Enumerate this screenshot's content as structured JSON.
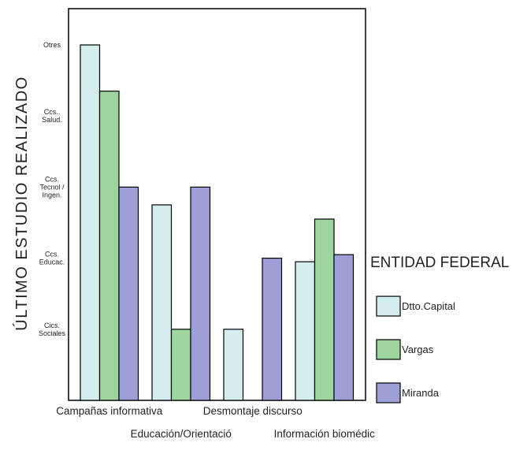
{
  "chart_data": {
    "type": "bar",
    "ylabel": "ÚLTIMO ESTUDIO REALIZADO",
    "xlabel": "",
    "categories": [
      "Campañas informativa",
      "Educación/Orientació",
      "Desmontaje discurso",
      "Información biomédic"
    ],
    "yticks": [
      {
        "value": 1,
        "lines": [
          "Cics.",
          "Sociales"
        ]
      },
      {
        "value": 2,
        "lines": [
          "Ccs.",
          "Educac."
        ]
      },
      {
        "value": 3,
        "lines": [
          "Ccs.",
          "Tecnol  /",
          "Ingen."
        ]
      },
      {
        "value": 4,
        "lines": [
          "Ccs..",
          "Salud."
        ]
      },
      {
        "value": 5,
        "lines": [
          "Otres"
        ]
      }
    ],
    "ylim": [
      0,
      5.4
    ],
    "series": [
      {
        "name": "Dtto.Capital",
        "color": "#d4eef0",
        "values": [
          5.0,
          2.75,
          1.0,
          1.95
        ]
      },
      {
        "name": "Vargas",
        "color": "#9ed49e",
        "values": [
          4.35,
          1.0,
          null,
          2.55
        ]
      },
      {
        "name": "Miranda",
        "color": "#9f9fd8",
        "values": [
          3.0,
          3.0,
          2.0,
          2.05
        ]
      }
    ],
    "legend": {
      "title": "ENTIDAD FEDERAL",
      "position": "right"
    },
    "grid": false
  }
}
